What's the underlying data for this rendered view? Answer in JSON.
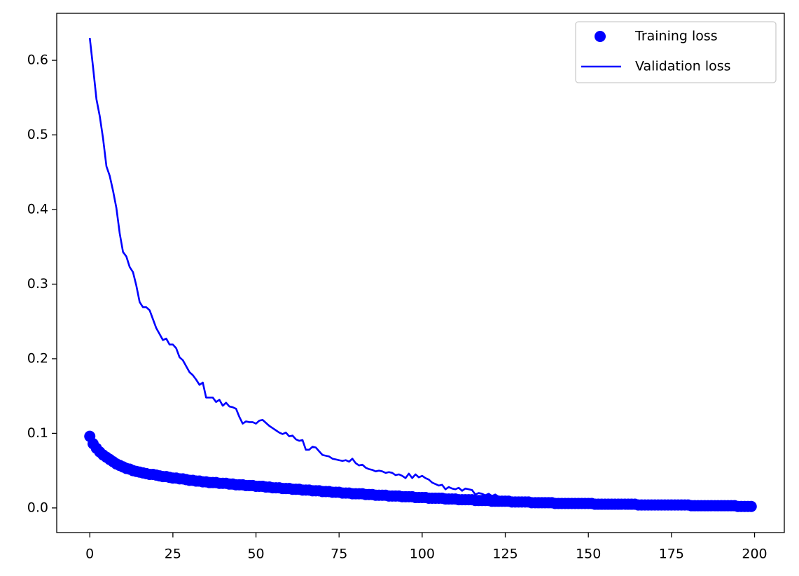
{
  "chart_data": {
    "type": "line",
    "x": [
      0,
      1,
      2,
      3,
      4,
      5,
      6,
      7,
      8,
      9,
      10,
      11,
      12,
      13,
      14,
      15,
      16,
      17,
      18,
      19,
      20,
      21,
      22,
      23,
      24,
      25,
      26,
      27,
      28,
      29,
      30,
      31,
      32,
      33,
      34,
      35,
      36,
      37,
      38,
      39,
      40,
      41,
      42,
      43,
      44,
      45,
      46,
      47,
      48,
      49,
      50,
      51,
      52,
      53,
      54,
      55,
      56,
      57,
      58,
      59,
      60,
      61,
      62,
      63,
      64,
      65,
      66,
      67,
      68,
      69,
      70,
      71,
      72,
      73,
      74,
      75,
      76,
      77,
      78,
      79,
      80,
      81,
      82,
      83,
      84,
      85,
      86,
      87,
      88,
      89,
      90,
      91,
      92,
      93,
      94,
      95,
      96,
      97,
      98,
      99,
      100,
      101,
      102,
      103,
      104,
      105,
      106,
      107,
      108,
      109,
      110,
      111,
      112,
      113,
      114,
      115,
      116,
      117,
      118,
      119,
      120,
      121,
      122,
      123,
      124,
      125,
      126,
      127,
      128,
      129,
      130,
      131,
      132,
      133,
      134,
      135,
      136,
      137,
      138,
      139,
      140,
      141,
      142,
      143,
      144,
      145,
      146,
      147,
      148,
      149,
      150,
      151,
      152,
      153,
      154,
      155,
      156,
      157,
      158,
      159,
      160,
      161,
      162,
      163,
      164,
      165,
      166,
      167,
      168,
      169,
      170,
      171,
      172,
      173,
      174,
      175,
      176,
      177,
      178,
      179,
      180,
      181,
      182,
      183,
      184,
      185,
      186,
      187,
      188,
      189,
      190,
      191,
      192,
      193,
      194,
      195,
      196,
      197,
      198,
      199
    ],
    "series": [
      {
        "name": "Training loss",
        "color": "#0000ff",
        "style": "markers",
        "values": [
          0.096,
          0.086,
          0.08,
          0.075,
          0.071,
          0.068,
          0.065,
          0.062,
          0.059,
          0.057,
          0.055,
          0.053,
          0.052,
          0.05,
          0.049,
          0.048,
          0.047,
          0.046,
          0.045,
          0.045,
          0.044,
          0.043,
          0.042,
          0.042,
          0.041,
          0.04,
          0.04,
          0.039,
          0.039,
          0.038,
          0.037,
          0.037,
          0.036,
          0.036,
          0.035,
          0.035,
          0.034,
          0.034,
          0.034,
          0.033,
          0.033,
          0.033,
          0.032,
          0.032,
          0.031,
          0.031,
          0.031,
          0.03,
          0.03,
          0.03,
          0.029,
          0.029,
          0.029,
          0.028,
          0.028,
          0.027,
          0.027,
          0.027,
          0.026,
          0.026,
          0.026,
          0.025,
          0.025,
          0.025,
          0.024,
          0.024,
          0.024,
          0.023,
          0.023,
          0.023,
          0.022,
          0.022,
          0.022,
          0.021,
          0.021,
          0.021,
          0.02,
          0.02,
          0.02,
          0.019,
          0.019,
          0.019,
          0.019,
          0.018,
          0.018,
          0.018,
          0.017,
          0.017,
          0.017,
          0.017,
          0.016,
          0.016,
          0.016,
          0.016,
          0.015,
          0.015,
          0.015,
          0.015,
          0.014,
          0.014,
          0.014,
          0.014,
          0.013,
          0.013,
          0.013,
          0.013,
          0.013,
          0.012,
          0.012,
          0.012,
          0.012,
          0.011,
          0.011,
          0.011,
          0.011,
          0.011,
          0.01,
          0.01,
          0.01,
          0.01,
          0.01,
          0.009,
          0.009,
          0.009,
          0.009,
          0.009,
          0.009,
          0.008,
          0.008,
          0.008,
          0.008,
          0.008,
          0.008,
          0.007,
          0.007,
          0.007,
          0.007,
          0.007,
          0.007,
          0.007,
          0.006,
          0.006,
          0.006,
          0.006,
          0.006,
          0.006,
          0.006,
          0.006,
          0.006,
          0.006,
          0.006,
          0.006,
          0.005,
          0.005,
          0.005,
          0.005,
          0.005,
          0.005,
          0.005,
          0.005,
          0.005,
          0.005,
          0.005,
          0.005,
          0.005,
          0.004,
          0.004,
          0.004,
          0.004,
          0.004,
          0.004,
          0.004,
          0.004,
          0.004,
          0.004,
          0.004,
          0.004,
          0.004,
          0.004,
          0.004,
          0.004,
          0.003,
          0.003,
          0.003,
          0.003,
          0.003,
          0.003,
          0.003,
          0.003,
          0.003,
          0.003,
          0.003,
          0.003,
          0.003,
          0.003,
          0.002,
          0.002,
          0.002,
          0.002,
          0.002
        ]
      },
      {
        "name": "Validation loss",
        "color": "#0000ff",
        "style": "line",
        "values": [
          0.63,
          0.59,
          0.548,
          0.525,
          0.495,
          0.458,
          0.445,
          0.425,
          0.402,
          0.368,
          0.343,
          0.337,
          0.323,
          0.316,
          0.298,
          0.276,
          0.269,
          0.269,
          0.265,
          0.253,
          0.241,
          0.233,
          0.225,
          0.227,
          0.219,
          0.219,
          0.214,
          0.202,
          0.198,
          0.19,
          0.182,
          0.178,
          0.172,
          0.165,
          0.168,
          0.148,
          0.148,
          0.148,
          0.142,
          0.145,
          0.137,
          0.141,
          0.136,
          0.135,
          0.133,
          0.122,
          0.113,
          0.116,
          0.115,
          0.115,
          0.113,
          0.117,
          0.118,
          0.114,
          0.11,
          0.107,
          0.104,
          0.101,
          0.099,
          0.101,
          0.096,
          0.097,
          0.092,
          0.09,
          0.091,
          0.078,
          0.078,
          0.082,
          0.081,
          0.076,
          0.071,
          0.07,
          0.069,
          0.066,
          0.065,
          0.064,
          0.063,
          0.064,
          0.062,
          0.066,
          0.06,
          0.057,
          0.058,
          0.054,
          0.052,
          0.051,
          0.049,
          0.05,
          0.049,
          0.047,
          0.048,
          0.047,
          0.044,
          0.045,
          0.043,
          0.04,
          0.046,
          0.04,
          0.045,
          0.041,
          0.043,
          0.04,
          0.038,
          0.034,
          0.032,
          0.03,
          0.031,
          0.025,
          0.028,
          0.026,
          0.025,
          0.027,
          0.023,
          0.026,
          0.025,
          0.024,
          0.018,
          0.02,
          0.019,
          0.017,
          0.019,
          0.016,
          0.018,
          0.015,
          0.014,
          0.012,
          0.011,
          0.01,
          0.013,
          0.01,
          0.009,
          0.011,
          0.01,
          0.009,
          0.011,
          0.009,
          0.008,
          0.008,
          0.009,
          0.008,
          0.008,
          0.007,
          0.008,
          0.007,
          0.007,
          0.008,
          0.007,
          0.006,
          0.007,
          0.006,
          0.006,
          0.006,
          0.007,
          0.006,
          0.006,
          0.005,
          0.006,
          0.005,
          0.006,
          0.005,
          0.005,
          0.005,
          0.005,
          0.004,
          0.005,
          0.004,
          0.005,
          0.004,
          0.004,
          0.004,
          0.004,
          0.004,
          0.004,
          0.003,
          0.004,
          0.004,
          0.003,
          0.004,
          0.003,
          0.003,
          0.003,
          0.003,
          0.003,
          0.003,
          0.003,
          0.003,
          0.003,
          0.003,
          0.002,
          0.003,
          0.003,
          0.002,
          0.003,
          0.002,
          0.002,
          0.002,
          0.002,
          0.002,
          0.002,
          0.002
        ]
      }
    ],
    "xlim": [
      -9.95,
      208.95
    ],
    "ylim": [
      -0.033,
      0.663
    ],
    "xticks": [
      0,
      25,
      50,
      75,
      100,
      125,
      150,
      175,
      200
    ],
    "yticks": [
      {
        "value": 0,
        "label": "0.0"
      },
      0.1,
      0.2,
      0.3,
      0.4,
      0.5,
      0.6
    ],
    "grid": false,
    "legend": "upper right"
  }
}
